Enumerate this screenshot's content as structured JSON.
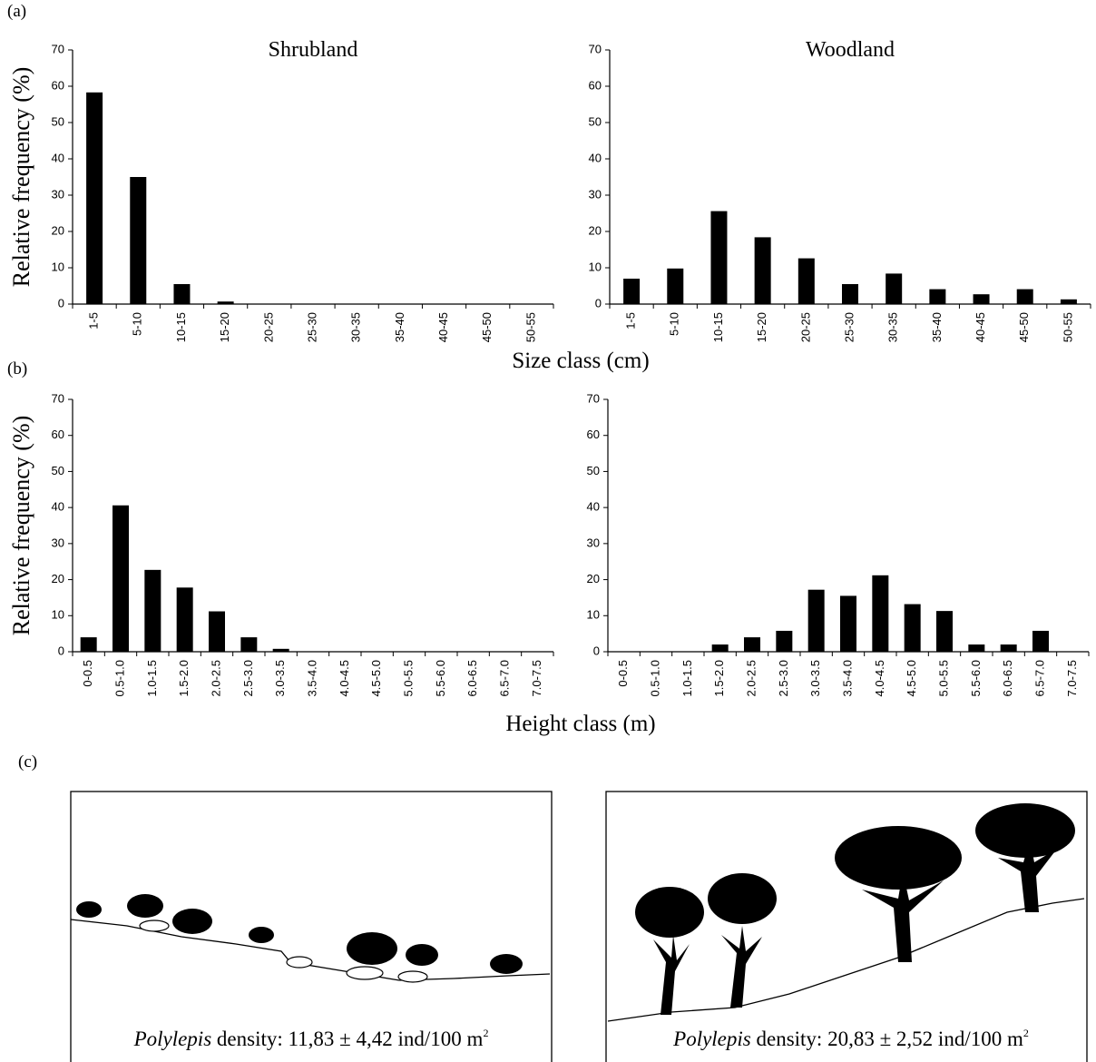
{
  "figure": {
    "panel_labels": [
      "(a)",
      "(b)",
      "(c)"
    ],
    "captions": [
      {
        "species": "Polylepis",
        "text": " density: 11,83 ± 4,42 ind/100 m",
        "sup": "2"
      },
      {
        "species": "Polylepis",
        "text": " density: 20,83 ± 2,52 ind/100 m",
        "sup": "2"
      }
    ]
  },
  "chart_data": [
    {
      "type": "bar",
      "title": "Shrubland",
      "y_label": "Relative frequency (%)",
      "x_label": "Size class (cm)",
      "categories": [
        "1-5",
        "5-10",
        "10-15",
        "15-20",
        "20-25",
        "25-30",
        "30-35",
        "35-40",
        "40-45",
        "45-50",
        "50-55"
      ],
      "values": [
        58.3,
        35,
        5.5,
        0.7,
        0,
        0,
        0,
        0,
        0,
        0,
        0
      ],
      "color": "#000000",
      "ylim": [
        0,
        70
      ],
      "yticks": [
        0,
        10,
        20,
        30,
        40,
        50,
        60,
        70
      ]
    },
    {
      "type": "bar",
      "title": "Woodland",
      "categories": [
        "1-5",
        "5-10",
        "10-15",
        "15-20",
        "20-25",
        "25-30",
        "30-35",
        "35-40",
        "40-45",
        "45-50",
        "50-55"
      ],
      "values": [
        7,
        9.8,
        25.6,
        18.4,
        12.6,
        5.5,
        8.4,
        4.1,
        2.7,
        4.1,
        1.3
      ],
      "color": "#000000",
      "ylim": [
        0,
        70
      ],
      "yticks": [
        0,
        10,
        20,
        30,
        40,
        50,
        60,
        70
      ]
    },
    {
      "type": "bar",
      "y_label": "Relative frequency (%)",
      "x_label": "Height class (m)",
      "categories": [
        "0-0.5",
        "0.5-1.0",
        "1.0-1.5",
        "1.5-2.0",
        "2.0-2.5",
        "2.5-3.0",
        "3.0-3.5",
        "3.5-4.0",
        "4.0-4.5",
        "4.5-5.0",
        "5.0-5.5",
        "5.5-6.0",
        "6.0-6.5",
        "6.5-7.0",
        "7.0-7.5"
      ],
      "values": [
        4,
        40.6,
        22.7,
        17.8,
        11.2,
        4,
        0.8,
        0,
        0,
        0,
        0,
        0,
        0,
        0,
        0
      ],
      "color": "#000000",
      "ylim": [
        0,
        70
      ],
      "yticks": [
        0,
        10,
        20,
        30,
        40,
        50,
        60,
        70
      ]
    },
    {
      "type": "bar",
      "categories": [
        "0-0.5",
        "0.5-1.0",
        "1.0-1.5",
        "1.5-2.0",
        "2.0-2.5",
        "2.5-3.0",
        "3.0-3.5",
        "3.5-4.0",
        "4.0-4.5",
        "4.5-5.0",
        "5.0-5.5",
        "5.5-6.0",
        "6.0-6.5",
        "6.5-7.0",
        "7.0-7.5"
      ],
      "values": [
        0,
        0,
        0,
        2,
        4,
        5.8,
        17.2,
        15.5,
        21.2,
        13.2,
        11.3,
        2,
        2,
        5.8,
        0
      ],
      "color": "#000000",
      "ylim": [
        0,
        70
      ],
      "yticks": [
        0,
        10,
        20,
        30,
        40,
        50,
        60,
        70
      ]
    }
  ]
}
